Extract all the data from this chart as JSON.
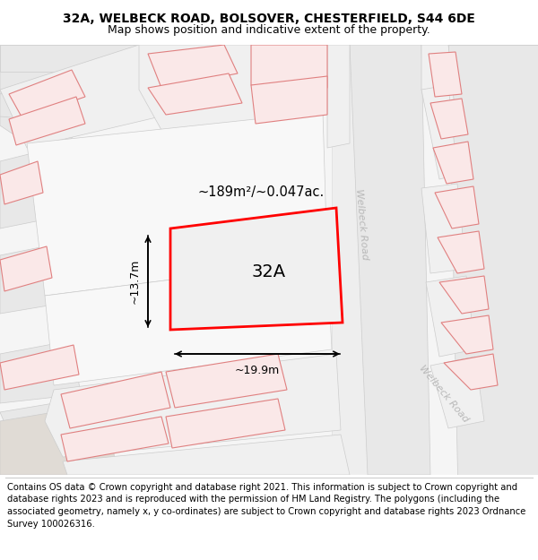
{
  "title_line1": "32A, WELBECK ROAD, BOLSOVER, CHESTERFIELD, S44 6DE",
  "title_line2": "Map shows position and indicative extent of the property.",
  "area_label": "~189m²/~0.047ac.",
  "plot_label": "32A",
  "dim_width": "~19.9m",
  "dim_height": "~13.7m",
  "footer_text": "Contains OS data © Crown copyright and database right 2021. This information is subject to Crown copyright and database rights 2023 and is reproduced with the permission of HM Land Registry. The polygons (including the associated geometry, namely x, y co-ordinates) are subject to Crown copyright and database rights 2023 Ordnance Survey 100026316.",
  "bg_color": "#ffffff",
  "title_fontsize": 10,
  "subtitle_fontsize": 9,
  "footer_fontsize": 7.2,
  "road_label_color": "#b8b8b8",
  "plot_border_color": "#ff0000",
  "plot_fill": "#f0f0f0",
  "grey_fill": "#e8e8e8",
  "grey_edge": "#cccccc",
  "pink_fill": "#fae8e8",
  "pink_edge": "#e08080"
}
